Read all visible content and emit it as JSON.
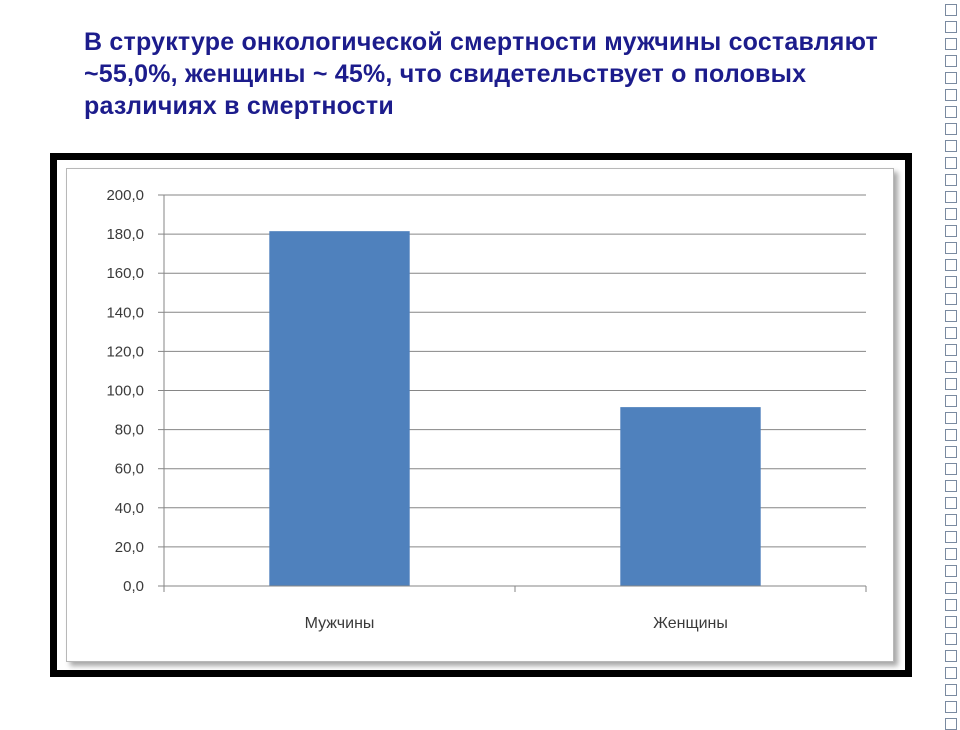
{
  "slide": {
    "title": "В структуре онкологической смертности мужчины составляют ~55,0%, женщины ~ 45%, что свидетельствует о половых различиях в смертности"
  },
  "colors": {
    "title": "#1c1c8c",
    "bar": "#4f81bd",
    "gridline": "#868686",
    "frame": "#000000"
  },
  "chart_data": {
    "type": "bar",
    "title": "",
    "xlabel": "",
    "ylabel": "",
    "categories": [
      "Мужчины",
      "Женщины"
    ],
    "values": [
      181.5,
      91.5
    ],
    "ylim": [
      0,
      200
    ],
    "ytick_step": 20,
    "ytick_labels": [
      "0,0",
      "20,0",
      "40,0",
      "60,0",
      "80,0",
      "100,0",
      "120,0",
      "140,0",
      "160,0",
      "180,0",
      "200,0"
    ],
    "grid": true,
    "legend": "none"
  }
}
